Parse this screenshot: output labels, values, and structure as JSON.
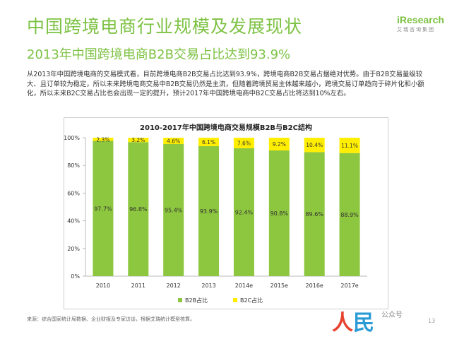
{
  "header": {
    "title": "中国跨境电商行业规模及发展现状",
    "subtitle": "2013年中国跨境电商B2B交易占比达到93.9%"
  },
  "logo": {
    "name_i": "i",
    "name_rest": "Research",
    "cn": "艾瑞咨询集团"
  },
  "paragraph": "从2013年中国跨境电商的交易模式看，目前跨境电商B2B交易占比达到93.9%，跨境电商B2B交易占据绝对优势。由于B2B交易量级较大、且订单较为稳定，所以未来跨境电商交易中B2B交易仍然是主流，但随着跨境贸易主体越来越小，跨境交易订单趋向于碎片化和小额化，所以未来B2C交易占比也会出现一定的提升，预计2017年中国跨境电商中B2C交易占比将达到10%左右。",
  "source": "来源：综合国家统计局数据、企业财报及专家访谈，根据艾瑞统计模型核算。",
  "page_number": "13",
  "watermark": {
    "a": "人",
    "b": "民",
    "small": "公众号"
  },
  "colors": {
    "accent": "#7dc243",
    "b2b": "#8dc63f",
    "b2c": "#ffee00"
  },
  "chart_data": {
    "type": "bar",
    "stacked": true,
    "title": "2010-2017年中国跨境电商交易规模B2B与B2C结构",
    "categories": [
      "2010",
      "2011",
      "2012",
      "2013",
      "2014e",
      "2015e",
      "2016e",
      "2017e"
    ],
    "series": [
      {
        "name": "B2B占比",
        "color": "#8dc63f",
        "values": [
          97.7,
          96.8,
          95.4,
          93.9,
          92.4,
          90.8,
          89.6,
          88.9
        ],
        "labels": [
          "97.7%",
          "96.8%",
          "95.4%",
          "93.9%",
          "92.4%",
          "90.8%",
          "89.6%",
          "88.9%"
        ]
      },
      {
        "name": "B2C占比",
        "color": "#ffee00",
        "values": [
          2.3,
          3.2,
          4.6,
          6.1,
          7.6,
          9.2,
          10.4,
          11.1
        ],
        "labels": [
          "2.3%",
          "3.2%",
          "4.6%",
          "6.1%",
          "7.6%",
          "9.2%",
          "10.4%",
          "11.1%"
        ]
      }
    ],
    "y_ticks": [
      "0%",
      "20%",
      "40%",
      "60%",
      "80%",
      "100%"
    ],
    "ylim": [
      0,
      100
    ],
    "grid": false,
    "legend": "bottom"
  }
}
